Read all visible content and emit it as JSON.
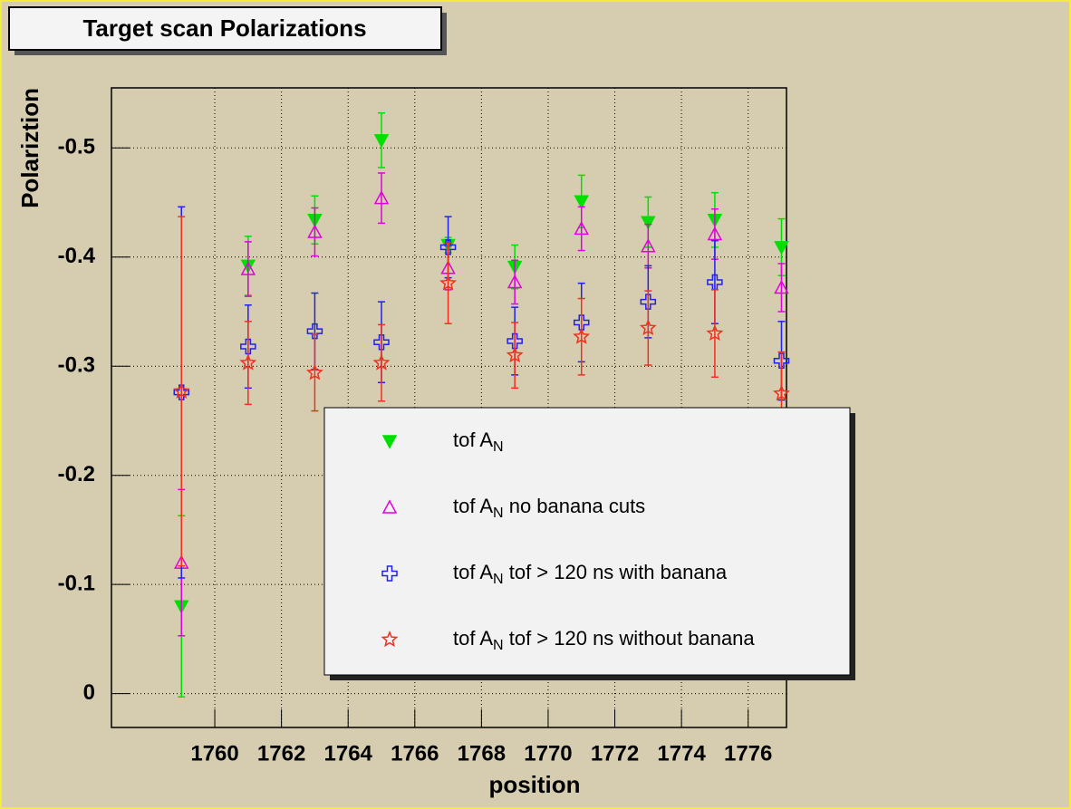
{
  "chart_data": {
    "type": "scatter",
    "title": "Target scan Polarizations",
    "x_label": "position",
    "y_label": "Polariztion",
    "x": [
      1759,
      1761,
      1763,
      1765,
      1767,
      1769,
      1771,
      1773,
      1775,
      1777
    ],
    "series": [
      {
        "name": "tof A_{N}",
        "color": "#00e000",
        "marker": "triangle-down-filled",
        "values": [
          -0.08,
          -0.392,
          -0.434,
          -0.507,
          -0.411,
          -0.391,
          -0.451,
          -0.432,
          -0.434,
          -0.409
        ],
        "errors": [
          0.083,
          0.027,
          0.022,
          0.025,
          0.007,
          0.02,
          0.024,
          0.023,
          0.025,
          0.026
        ]
      },
      {
        "name": "tof A_{N} no banana cuts",
        "color": "#e000e0",
        "marker": "triangle-up-open",
        "values": [
          -0.12,
          -0.389,
          -0.423,
          -0.454,
          -0.39,
          -0.377,
          -0.426,
          -0.41,
          -0.421,
          -0.372
        ],
        "errors": [
          0.067,
          0.025,
          0.022,
          0.023,
          0.02,
          0.02,
          0.02,
          0.02,
          0.023,
          0.022
        ]
      },
      {
        "name": "tof A_{N} tof > 120 ns with banana",
        "color": "#2020f0",
        "marker": "cross-open",
        "values": [
          -0.276,
          -0.318,
          -0.332,
          -0.322,
          -0.409,
          -0.323,
          -0.34,
          -0.359,
          -0.377,
          -0.305
        ],
        "errors": [
          0.17,
          0.038,
          0.035,
          0.037,
          0.028,
          0.031,
          0.036,
          0.033,
          0.038,
          0.036
        ]
      },
      {
        "name": "tof A_{N} tof > 120 ns without banana",
        "color": "#f03020",
        "marker": "star-open",
        "values": [
          -0.277,
          -0.303,
          -0.294,
          -0.303,
          -0.376,
          -0.31,
          -0.327,
          -0.335,
          -0.33,
          -0.275
        ],
        "errors": [
          0.16,
          0.038,
          0.035,
          0.035,
          0.037,
          0.03,
          0.035,
          0.034,
          0.04,
          0.038
        ]
      }
    ],
    "xlim": [
      1756.9,
      1777.15
    ],
    "xticks": [
      1760,
      1762,
      1764,
      1766,
      1768,
      1770,
      1772,
      1774,
      1776
    ],
    "ylim": [
      0.031,
      -0.555
    ],
    "yticks": [
      0,
      -0.1,
      -0.2,
      -0.3,
      -0.4,
      -0.5
    ],
    "grid": true,
    "legend": "bottom-center"
  }
}
